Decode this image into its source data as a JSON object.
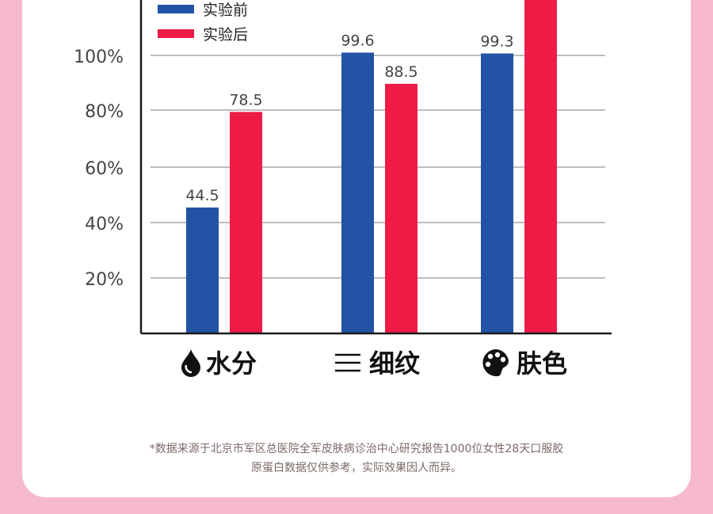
{
  "chart_data": {
    "type": "bar",
    "categories": [
      "水分",
      "细纹",
      "肤色"
    ],
    "category_icons": [
      "drop-icon",
      "lines-icon",
      "palette-icon"
    ],
    "series": [
      {
        "name": "实验前",
        "color": "#2253a5",
        "values": [
          44.5,
          99.6,
          99.3
        ]
      },
      {
        "name": "实验后",
        "color": "#ee1b47",
        "values": [
          78.5,
          88.5,
          121.5
        ]
      }
    ],
    "y_ticks": [
      "20%",
      "40%",
      "60%",
      "80%",
      "100%"
    ],
    "grid": true,
    "legend_position": "top-left"
  },
  "footnote": {
    "line1": "*数据来源于北京市军区总医院全军皮肤病诊治中心研究报告1000位女性28天口服胶",
    "line2": "原蛋白数据仅供参考，实际效果因人而异。"
  }
}
